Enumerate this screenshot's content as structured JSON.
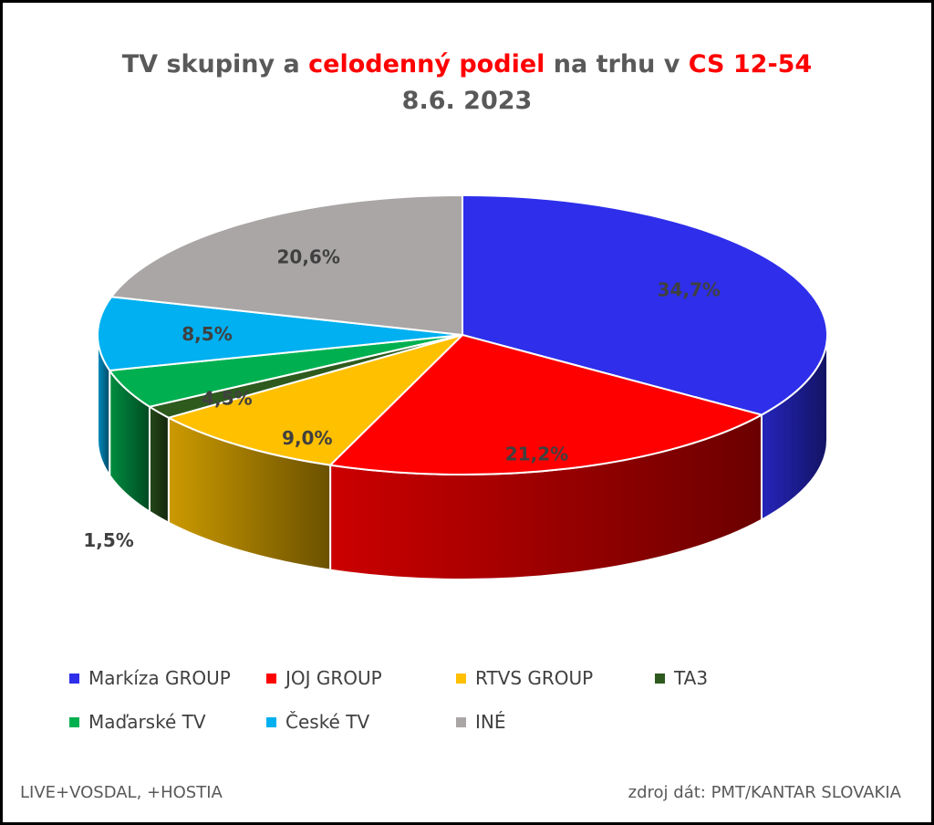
{
  "title": {
    "line1_part1": "TV skupiny a ",
    "line1_highlight1": "celodenný podiel",
    "line1_part2": " na trhu v ",
    "line1_highlight2": "CS 12-54",
    "line2": "8.6. 2023"
  },
  "footer": {
    "left": "LIVE+VOSDAL,  +HOSTIA",
    "right": "zdroj dát: PMT/KANTAR SLOVAKIA"
  },
  "chart_data": {
    "type": "pie",
    "title": "TV skupiny a celodenný podiel na trhu v CS 12-54 8.6. 2023",
    "categories": [
      "Markíza GROUP",
      "JOJ GROUP",
      "RTVS GROUP",
      "TA3",
      "Maďarské  TV",
      "České  TV",
      "INÉ"
    ],
    "values": [
      34.7,
      21.2,
      9.0,
      1.5,
      4.5,
      8.5,
      20.6
    ],
    "labels": [
      "34,7%",
      "21,2%",
      "9,0%",
      "1,5%",
      "4,5%",
      "8,5%",
      "20,6%"
    ],
    "colors": [
      "#2e2eeb",
      "#ff0000",
      "#ffc000",
      "#2e5a1e",
      "#00b050",
      "#00b0f0",
      "#aaa6a6"
    ],
    "legend_position": "bottom",
    "style": "3d"
  }
}
